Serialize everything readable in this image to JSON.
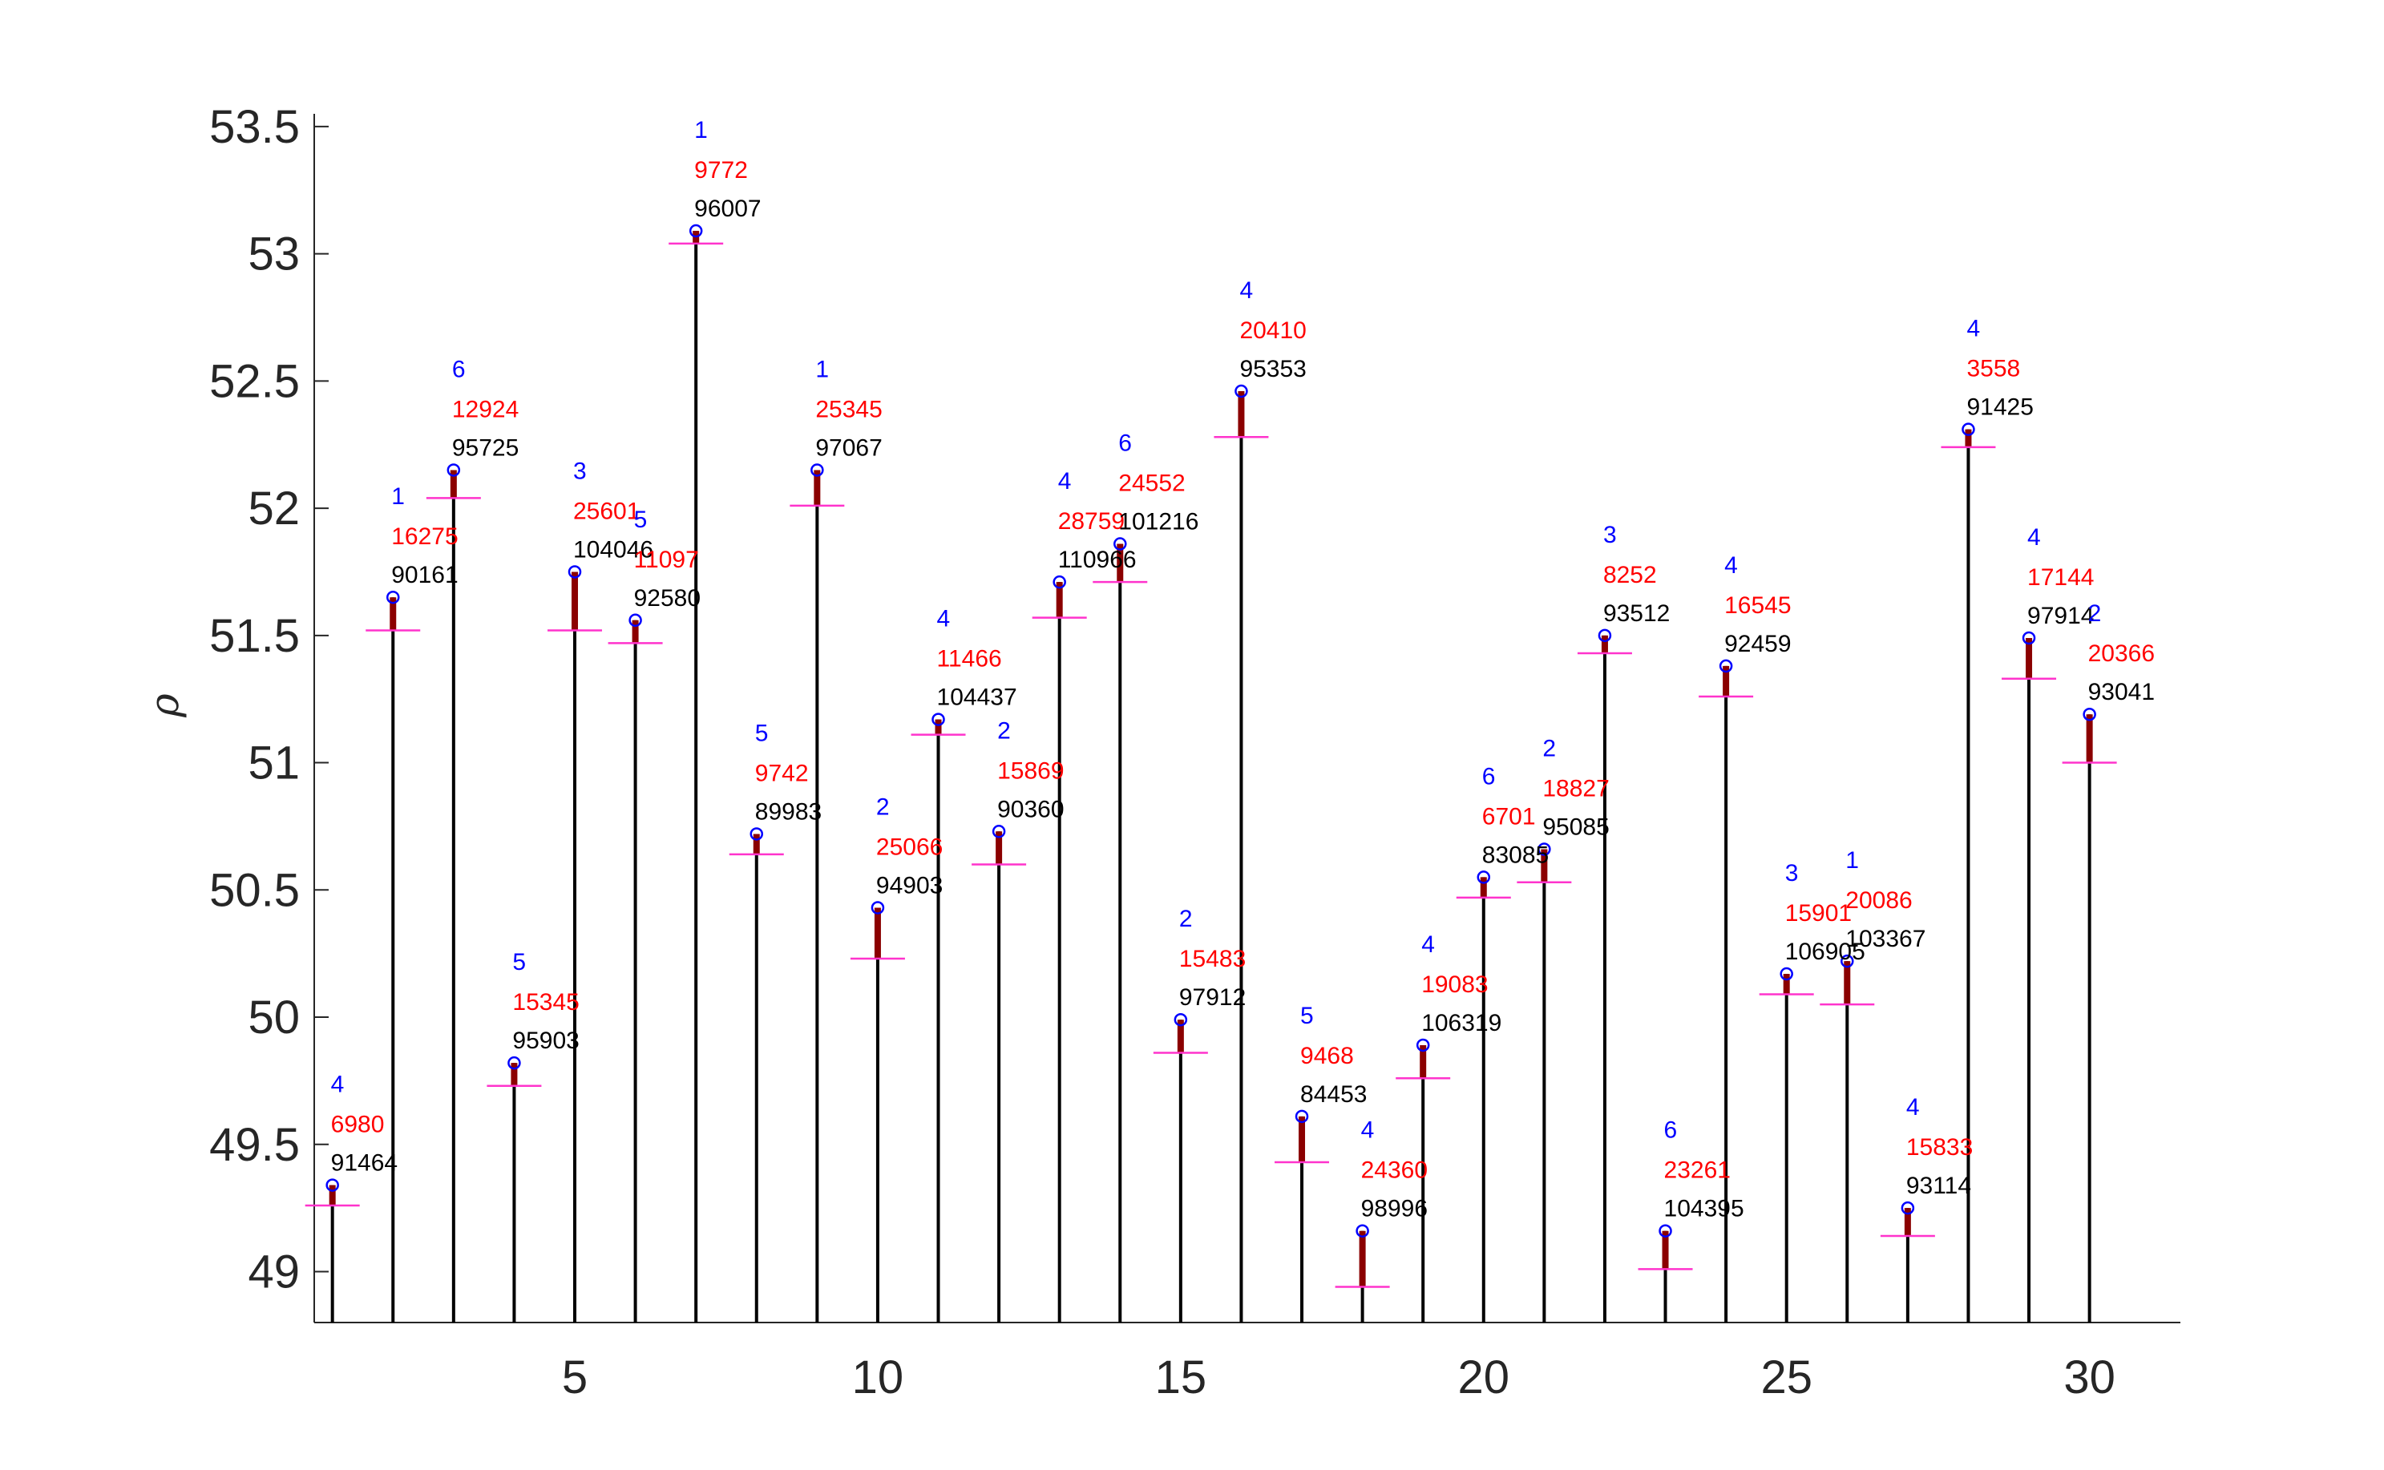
{
  "chart_data": {
    "type": "stem",
    "ylabel": "ρ",
    "xlim": [
      0.7,
      31.5
    ],
    "ylim": [
      48.8,
      53.55
    ],
    "xticks": [
      5,
      10,
      15,
      20,
      25,
      30
    ],
    "yticks": [
      49,
      49.5,
      50,
      50.5,
      51,
      51.5,
      52,
      52.5,
      53,
      53.5
    ],
    "xtick_labels": [
      "5",
      "10",
      "15",
      "20",
      "25",
      "30"
    ],
    "ytick_labels": [
      "49",
      "49.5",
      "50",
      "50.5",
      "51",
      "51.5",
      "52",
      "52.5",
      "53",
      "53.5"
    ],
    "colors": {
      "stem": "#000000",
      "band": "#8b0000",
      "lower_mark": "#ff33cc",
      "marker": "#0000ff",
      "label_top": "#0000ff",
      "label_mid": "#ff0000",
      "label_bottom": "#000000"
    },
    "points": [
      {
        "x": 1,
        "y": 49.34,
        "lower": 49.26,
        "label_top": "4",
        "label_mid": "6980",
        "label_bottom": "91464"
      },
      {
        "x": 2,
        "y": 51.65,
        "lower": 51.52,
        "label_top": "1",
        "label_mid": "16275",
        "label_bottom": "90161"
      },
      {
        "x": 3,
        "y": 52.15,
        "lower": 52.04,
        "label_top": "6",
        "label_mid": "12924",
        "label_bottom": "95725"
      },
      {
        "x": 4,
        "y": 49.82,
        "lower": 49.73,
        "label_top": "5",
        "label_mid": "15345",
        "label_bottom": "95903"
      },
      {
        "x": 5,
        "y": 51.75,
        "lower": 51.52,
        "label_top": "3",
        "label_mid": "25601",
        "label_bottom": "104046"
      },
      {
        "x": 6,
        "y": 51.56,
        "lower": 51.47,
        "label_top": "5",
        "label_mid": "11097",
        "label_bottom": "92580"
      },
      {
        "x": 7,
        "y": 53.09,
        "lower": 53.04,
        "label_top": "1",
        "label_mid": "9772",
        "label_bottom": "96007"
      },
      {
        "x": 8,
        "y": 50.72,
        "lower": 50.64,
        "label_top": "5",
        "label_mid": "9742",
        "label_bottom": "89983"
      },
      {
        "x": 9,
        "y": 52.15,
        "lower": 52.01,
        "label_top": "1",
        "label_mid": "25345",
        "label_bottom": "97067"
      },
      {
        "x": 10,
        "y": 50.43,
        "lower": 50.23,
        "label_top": "2",
        "label_mid": "25066",
        "label_bottom": "94903"
      },
      {
        "x": 11,
        "y": 51.17,
        "lower": 51.11,
        "label_top": "4",
        "label_mid": "11466",
        "label_bottom": "104437"
      },
      {
        "x": 12,
        "y": 50.73,
        "lower": 50.6,
        "label_top": "2",
        "label_mid": "15869",
        "label_bottom": "90360"
      },
      {
        "x": 13,
        "y": 51.71,
        "lower": 51.57,
        "label_top": "4",
        "label_mid": "28759",
        "label_bottom": "110966"
      },
      {
        "x": 14,
        "y": 51.86,
        "lower": 51.71,
        "label_top": "6",
        "label_mid": "24552",
        "label_bottom": "101216"
      },
      {
        "x": 15,
        "y": 49.99,
        "lower": 49.86,
        "label_top": "2",
        "label_mid": "15483",
        "label_bottom": "97912"
      },
      {
        "x": 16,
        "y": 52.46,
        "lower": 52.28,
        "label_top": "4",
        "label_mid": "20410",
        "label_bottom": "95353"
      },
      {
        "x": 17,
        "y": 49.61,
        "lower": 49.43,
        "label_top": "5",
        "label_mid": "9468",
        "label_bottom": "84453"
      },
      {
        "x": 18,
        "y": 49.16,
        "lower": 48.94,
        "label_top": "4",
        "label_mid": "24360",
        "label_bottom": "98996"
      },
      {
        "x": 19,
        "y": 49.89,
        "lower": 49.76,
        "label_top": "4",
        "label_mid": "19083",
        "label_bottom": "106319"
      },
      {
        "x": 20,
        "y": 50.55,
        "lower": 50.47,
        "label_top": "6",
        "label_mid": "6701",
        "label_bottom": "83085"
      },
      {
        "x": 21,
        "y": 50.66,
        "lower": 50.53,
        "label_top": "2",
        "label_mid": "18827",
        "label_bottom": "95085"
      },
      {
        "x": 22,
        "y": 51.5,
        "lower": 51.43,
        "label_top": "3",
        "label_mid": "8252",
        "label_bottom": "93512"
      },
      {
        "x": 23,
        "y": 49.16,
        "lower": 49.01,
        "label_top": "6",
        "label_mid": "23261",
        "label_bottom": "104395"
      },
      {
        "x": 24,
        "y": 51.38,
        "lower": 51.26,
        "label_top": "4",
        "label_mid": "16545",
        "label_bottom": "92459"
      },
      {
        "x": 25,
        "y": 50.17,
        "lower": 50.09,
        "label_top": "3",
        "label_mid": "15901",
        "label_bottom": "106905"
      },
      {
        "x": 26,
        "y": 50.22,
        "lower": 50.05,
        "label_top": "1",
        "label_mid": "20086",
        "label_bottom": "103367"
      },
      {
        "x": 27,
        "y": 49.25,
        "lower": 49.14,
        "label_top": "4",
        "label_mid": "15833",
        "label_bottom": "93114"
      },
      {
        "x": 28,
        "y": 52.31,
        "lower": 52.24,
        "label_top": "4",
        "label_mid": "3558",
        "label_bottom": "91425"
      },
      {
        "x": 29,
        "y": 51.49,
        "lower": 51.33,
        "label_top": "4",
        "label_mid": "17144",
        "label_bottom": "97914"
      },
      {
        "x": 30,
        "y": 51.19,
        "lower": 51.0,
        "label_top": "2",
        "label_mid": "20366",
        "label_bottom": "93041"
      }
    ]
  }
}
